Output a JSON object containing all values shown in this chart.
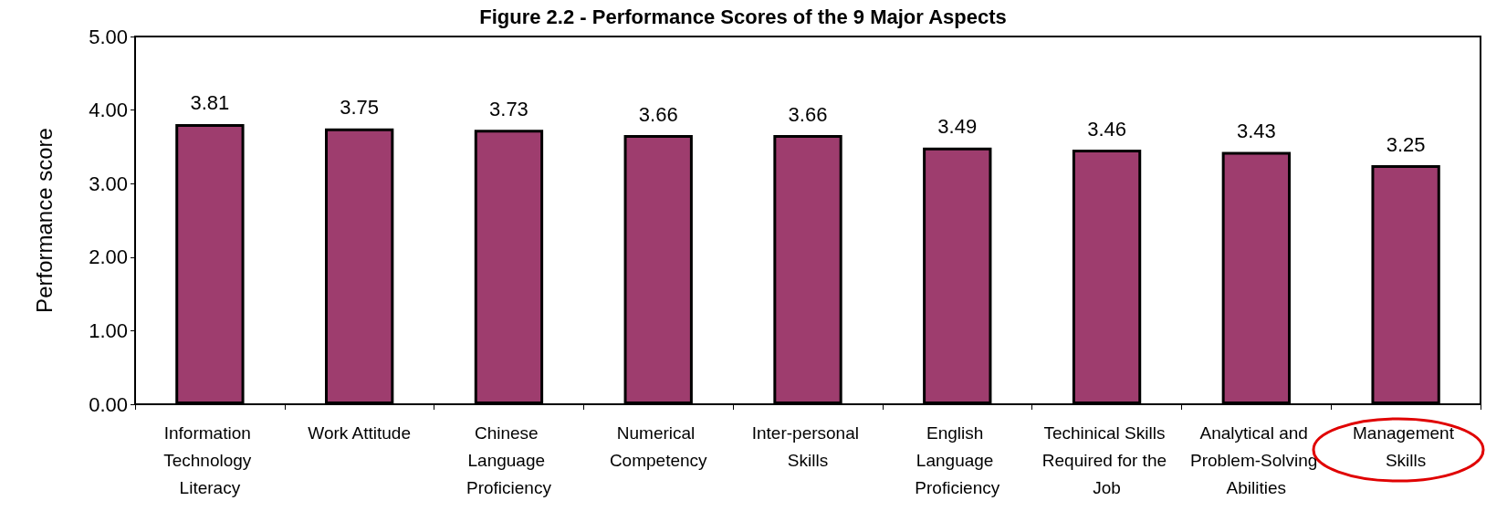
{
  "chart_data": {
    "type": "bar",
    "title": "Figure 2.2 - Performance Scores of the 9 Major Aspects",
    "ylabel": "Performance score",
    "categories": [
      "Information Technology Literacy",
      "Work Attitude",
      "Chinese Language Proficiency",
      "Numerical Competency",
      "Inter-personal Skills",
      "English Language Proficiency",
      "Techinical Skills Required for the Job",
      "Analytical and Problem-Solving Abilities",
      "Management Skills"
    ],
    "values": [
      3.81,
      3.75,
      3.73,
      3.66,
      3.66,
      3.49,
      3.46,
      3.43,
      3.25
    ],
    "color": "#9e3d6e",
    "ylim": [
      0,
      5
    ],
    "yticks": [
      {
        "value": 0,
        "label": "0.00"
      },
      {
        "value": 1,
        "label": "1.00"
      },
      {
        "value": 2,
        "label": "2.00"
      },
      {
        "value": 3,
        "label": "3.00"
      },
      {
        "value": 4,
        "label": "4.00"
      },
      {
        "value": 5,
        "label": "5.00"
      }
    ],
    "data_labels": true
  }
}
